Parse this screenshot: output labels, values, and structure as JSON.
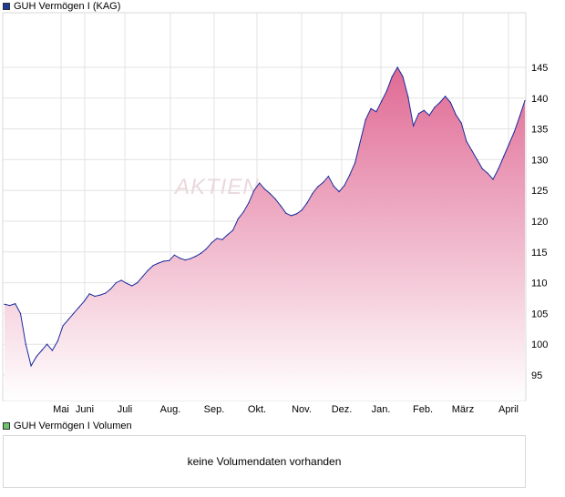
{
  "colors": {
    "price_line": "#1a2a9c",
    "fill_top": "#e06a94",
    "fill_bottom": "#ffffff",
    "grid": "#e3e3e3",
    "frame": "#d8d8d8",
    "price_swatch": "#1a3a9c",
    "volume_swatch": "#6cc46c",
    "watermark": "#ead8dc"
  },
  "legend": {
    "price_label": "GUH Vermögen I (KAG)",
    "volume_label": "GUH Vermögen I Volumen"
  },
  "volume": {
    "message": "keine Volumendaten vorhanden"
  },
  "watermark": "AKTIEN",
  "chart_data": {
    "type": "area",
    "title": "GUH Vermögen I (KAG)",
    "xlabel": "",
    "ylabel": "",
    "ylim": [
      91,
      148
    ],
    "y_ticks": [
      95,
      100,
      105,
      110,
      115,
      120,
      125,
      130,
      135,
      140,
      145
    ],
    "x_ticks": [
      "Mai",
      "Juni",
      "Juli",
      "Aug.",
      "Sep.",
      "Okt.",
      "Nov.",
      "Dez.",
      "Jan.",
      "Feb.",
      "März",
      "April"
    ],
    "grid": true,
    "series": [
      {
        "values": [
          106.5,
          106.3,
          106.6,
          105,
          100,
          96.5,
          98,
          99,
          100,
          99,
          100.5,
          103,
          104,
          105,
          106,
          107,
          108.2,
          107.8,
          108,
          108.3,
          109,
          110,
          110.4,
          109.9,
          109.5,
          110,
          111,
          112,
          112.8,
          113.2,
          113.5,
          113.6,
          114.5,
          114,
          113.7,
          113.9,
          114.3,
          114.8,
          115.5,
          116.5,
          117.2,
          117,
          117.8,
          118.5,
          120.4,
          121.5,
          123,
          125,
          126.2,
          125.2,
          124.5,
          123.6,
          122.5,
          121.3,
          120.9,
          121.2,
          121.8,
          123,
          124.5,
          125.6,
          126.3,
          127.3,
          125.7,
          124.8,
          125.8,
          127.5,
          129.5,
          133,
          136.5,
          138.3,
          137.8,
          139.5,
          141.2,
          143.5,
          145,
          143.5,
          140.2,
          135.5,
          137.5,
          138,
          137.2,
          138.5,
          139.3,
          140.3,
          139.3,
          137.3,
          136,
          133,
          131.5,
          130,
          128.5,
          127.8,
          126.8,
          128.5,
          130.5,
          132.5,
          134.5,
          137,
          139.6
        ]
      }
    ]
  }
}
